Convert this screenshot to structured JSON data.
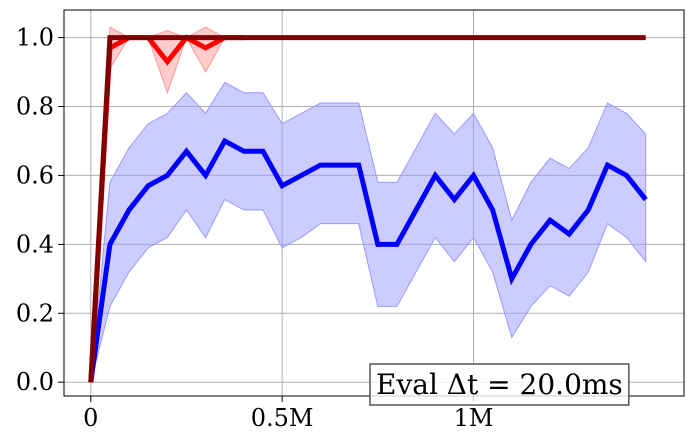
{
  "chart_data": {
    "type": "line",
    "title": "",
    "xlabel": "",
    "ylabel": "",
    "xlim": [
      -70000,
      1550000
    ],
    "ylim": [
      -0.04,
      1.08
    ],
    "grid": true,
    "x_ticks": [
      {
        "value": 0,
        "label": "0"
      },
      {
        "value": 500000,
        "label": "0.5M"
      },
      {
        "value": 1000000,
        "label": "1M"
      }
    ],
    "y_ticks": [
      {
        "value": 0.0,
        "label": "0.0"
      },
      {
        "value": 0.2,
        "label": "0.2"
      },
      {
        "value": 0.4,
        "label": "0.4"
      },
      {
        "value": 0.6,
        "label": "0.6"
      },
      {
        "value": 0.8,
        "label": "0.8"
      },
      {
        "value": 1.0,
        "label": "1.0"
      }
    ],
    "annotation": {
      "text": "Eval Δt = 20.0ms",
      "location": "bottom-right"
    },
    "series": [
      {
        "color": "#0000ff",
        "band_color": "#9999ff",
        "x": [
          0,
          50000,
          100000,
          150000,
          200000,
          250000,
          300000,
          350000,
          400000,
          450000,
          500000,
          550000,
          600000,
          650000,
          700000,
          750000,
          800000,
          850000,
          900000,
          950000,
          1000000,
          1050000,
          1100000,
          1150000,
          1200000,
          1250000,
          1300000,
          1350000,
          1400000,
          1450000
        ],
        "y": [
          0.0,
          0.4,
          0.5,
          0.57,
          0.6,
          0.67,
          0.6,
          0.7,
          0.67,
          0.67,
          0.57,
          0.6,
          0.63,
          0.63,
          0.63,
          0.4,
          0.4,
          0.5,
          0.6,
          0.53,
          0.6,
          0.5,
          0.3,
          0.4,
          0.47,
          0.43,
          0.5,
          0.63,
          0.6,
          0.53
        ],
        "upper": [
          0.0,
          0.58,
          0.68,
          0.75,
          0.78,
          0.84,
          0.78,
          0.87,
          0.84,
          0.84,
          0.75,
          0.78,
          0.81,
          0.81,
          0.81,
          0.58,
          0.58,
          0.68,
          0.78,
          0.72,
          0.78,
          0.68,
          0.47,
          0.58,
          0.65,
          0.62,
          0.68,
          0.81,
          0.78,
          0.72
        ],
        "lower": [
          0.0,
          0.22,
          0.32,
          0.39,
          0.42,
          0.5,
          0.42,
          0.53,
          0.5,
          0.5,
          0.39,
          0.42,
          0.46,
          0.46,
          0.46,
          0.22,
          0.22,
          0.32,
          0.42,
          0.35,
          0.42,
          0.32,
          0.13,
          0.22,
          0.28,
          0.25,
          0.32,
          0.46,
          0.42,
          0.35
        ]
      },
      {
        "color": "#ff0000",
        "band_color": "#ff9999",
        "x": [
          0,
          50000,
          100000,
          150000,
          200000,
          250000,
          300000,
          350000,
          400000
        ],
        "y": [
          0.0,
          0.97,
          1.0,
          1.0,
          0.93,
          1.0,
          0.97,
          1.0,
          1.0
        ],
        "upper": [
          0.0,
          1.03,
          1.0,
          1.0,
          1.02,
          1.0,
          1.03,
          1.0,
          1.0
        ],
        "lower": [
          0.0,
          0.91,
          1.0,
          1.0,
          0.84,
          1.0,
          0.9,
          1.0,
          1.0
        ]
      },
      {
        "color": "#800000",
        "band_color": "",
        "x": [
          0,
          50000,
          1450000
        ],
        "y": [
          0.0,
          1.0,
          1.0
        ]
      }
    ]
  }
}
